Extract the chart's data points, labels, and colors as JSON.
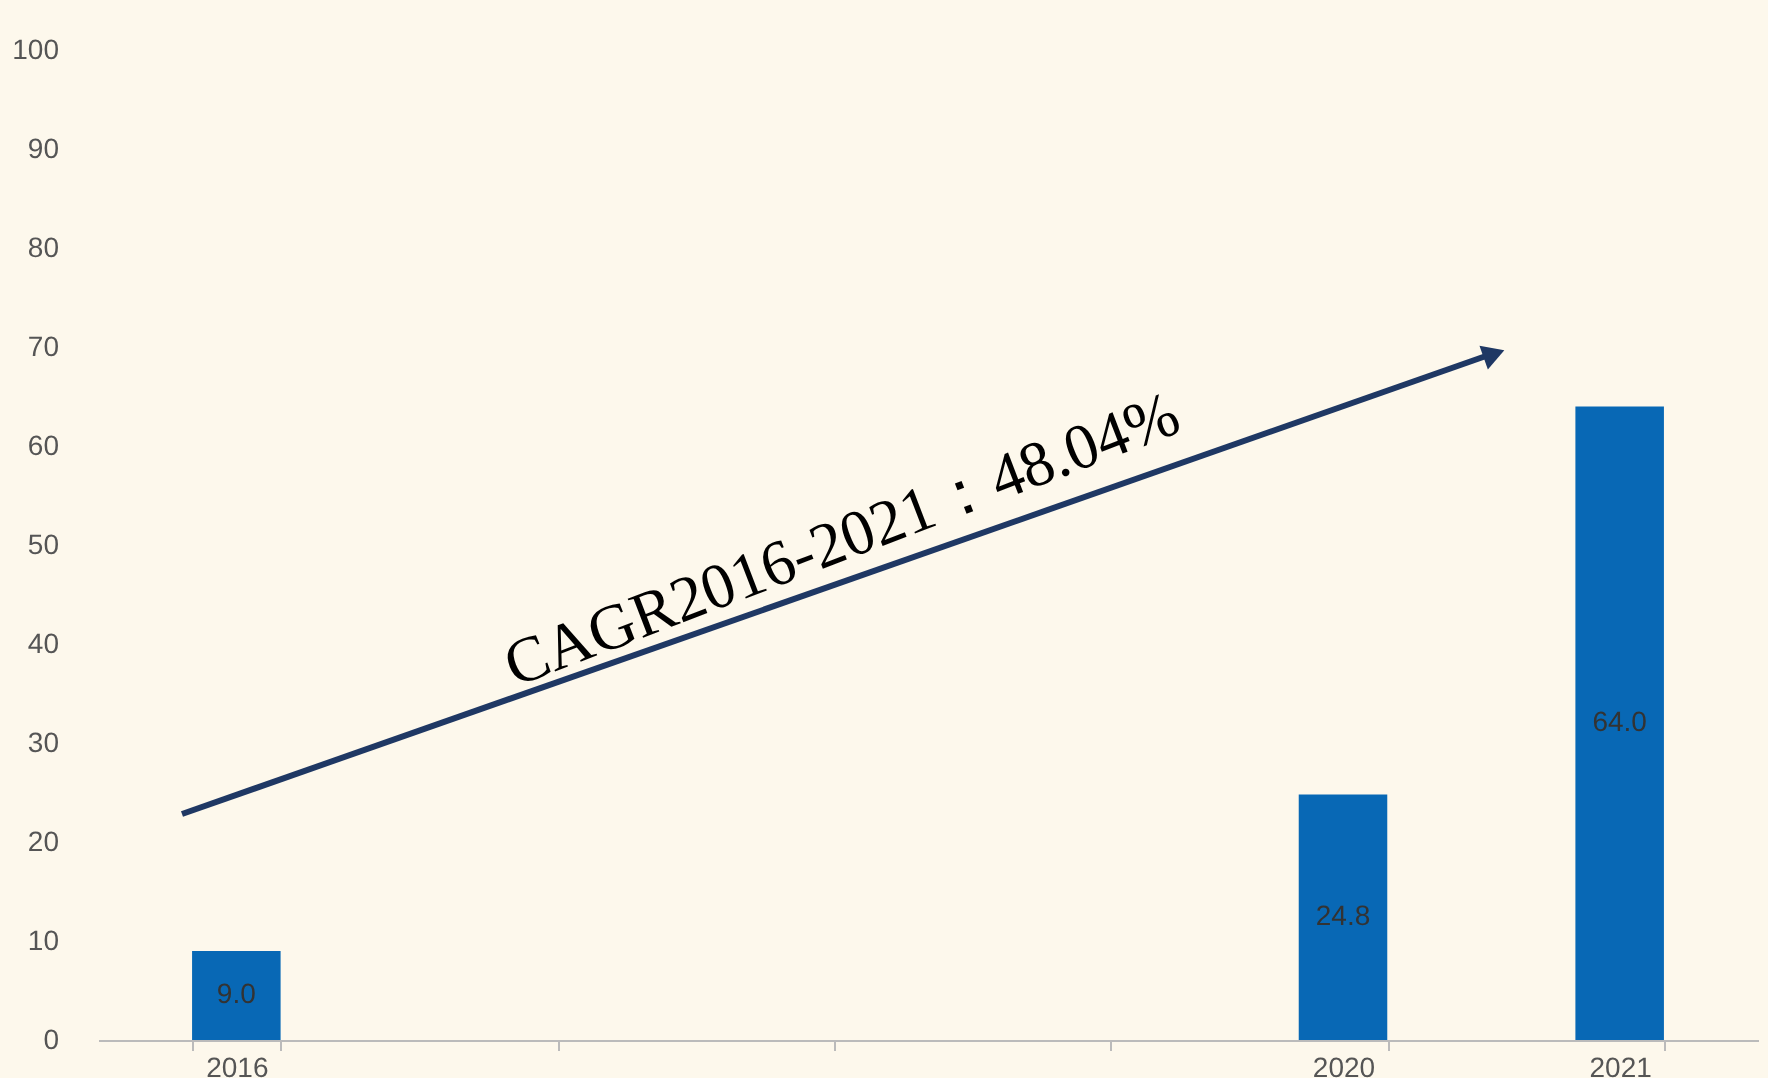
{
  "chart_data": {
    "type": "bar",
    "categories": [
      "2016",
      null,
      null,
      null,
      "2020",
      "2021"
    ],
    "values": [
      9.0,
      null,
      null,
      null,
      24.8,
      64.0
    ],
    "color": "#0868b5",
    "ylim": [
      0,
      100
    ],
    "yticks": [
      0,
      10,
      20,
      30,
      40,
      50,
      60,
      70,
      80,
      90,
      100
    ],
    "value_labels": [
      "9.0",
      null,
      null,
      null,
      "24.8",
      "64.0"
    ],
    "grid": false,
    "annotations": [
      "CAGR2016-2021：48.04%"
    ]
  }
}
